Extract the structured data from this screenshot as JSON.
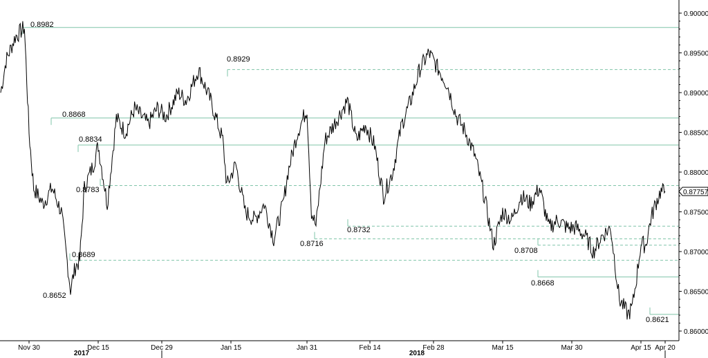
{
  "chart_data": {
    "type": "line",
    "title": "",
    "xlabel": "",
    "ylabel": "",
    "ylim": [
      0.8596,
      0.9018
    ],
    "x_ticks": [
      "Nov 30",
      "Dec 15",
      "Dec 29",
      "Jan 15",
      "Jan 31",
      "Feb 14",
      "Feb 28",
      "Mar 15",
      "Mar 30",
      "Apr 15",
      "Apr 20"
    ],
    "year_labels": [
      "2017",
      "2018"
    ],
    "y_ticks": [
      "0.86000",
      "0.86500",
      "0.87000",
      "0.87500",
      "0.88000",
      "0.88500",
      "0.89000",
      "0.89500",
      "0.90000"
    ],
    "last_value_label": "0.87757",
    "series": [
      {
        "x": [
          "Nov 23",
          "Nov 25",
          "Nov 27",
          "Nov 29",
          "Nov 30",
          "Dec 1",
          "Dec 3",
          "Dec 5",
          "Dec 7",
          "Dec 9",
          "Dec 10",
          "Dec 11",
          "Dec 12",
          "Dec 14",
          "Dec 15",
          "Dec 17",
          "Dec 19",
          "Dec 21",
          "Dec 23",
          "Dec 26",
          "Dec 28",
          "Dec 30",
          "Jan 2",
          "Jan 4",
          "Jan 7",
          "Jan 10",
          "Jan 13",
          "Jan 14",
          "Jan 16",
          "Jan 18",
          "Jan 20",
          "Jan 22",
          "Jan 24",
          "Jan 26",
          "Jan 27",
          "Jan 29",
          "Jan 31",
          "Feb 1",
          "Feb 2",
          "Feb 4",
          "Feb 6",
          "Feb 8",
          "Feb 9",
          "Feb 11",
          "Feb 13",
          "Feb 15",
          "Feb 17",
          "Feb 19",
          "Feb 21",
          "Feb 23",
          "Feb 25",
          "Feb 27",
          "Mar 1",
          "Mar 3",
          "Mar 5",
          "Mar 7",
          "Mar 9",
          "Mar 11",
          "Mar 13",
          "Mar 15",
          "Mar 17",
          "Mar 19",
          "Mar 21",
          "Mar 23",
          "Mar 25",
          "Mar 27",
          "Mar 29",
          "Mar 31",
          "Apr 2",
          "Apr 4",
          "Apr 6",
          "Apr 8",
          "Apr 10",
          "Apr 12",
          "Apr 13",
          "Apr 14",
          "Apr 15",
          "Apr 16",
          "Apr 17",
          "Apr 18",
          "Apr 19",
          "Apr 20"
        ],
        "y": [
          0.89,
          0.894,
          0.897,
          0.8982,
          0.885,
          0.878,
          0.876,
          0.878,
          0.875,
          0.8652,
          0.868,
          0.8689,
          0.878,
          0.881,
          0.8834,
          0.876,
          0.8868,
          0.885,
          0.888,
          0.886,
          0.888,
          0.887,
          0.89,
          0.889,
          0.8929,
          0.889,
          0.884,
          0.8783,
          0.881,
          0.875,
          0.874,
          0.876,
          0.8716,
          0.876,
          0.88,
          0.885,
          0.888,
          0.875,
          0.8732,
          0.884,
          0.886,
          0.888,
          0.889,
          0.884,
          0.886,
          0.8834,
          0.877,
          0.88,
          0.886,
          0.889,
          0.893,
          0.895,
          0.893,
          0.891,
          0.887,
          0.885,
          0.882,
          0.877,
          0.8708,
          0.875,
          0.874,
          0.877,
          0.876,
          0.878,
          0.873,
          0.874,
          0.873,
          0.873,
          0.872,
          0.87,
          0.872,
          0.873,
          0.864,
          0.8621,
          0.863,
          0.8668,
          0.871,
          0.8708,
          0.874,
          0.876,
          0.8775,
          0.87757
        ]
      }
    ],
    "levels": [
      {
        "label": "0.8982",
        "value": 0.8982,
        "style": "solid"
      },
      {
        "label": "0.8929",
        "value": 0.8929,
        "style": "dashed"
      },
      {
        "label": "0.8868",
        "value": 0.8868,
        "style": "solid"
      },
      {
        "label": "0.8834",
        "value": 0.8834,
        "style": "solid"
      },
      {
        "label": "0.8783",
        "value": 0.8783,
        "style": "dashed"
      },
      {
        "label": "0.8732",
        "value": 0.8732,
        "style": "dashed"
      },
      {
        "label": "0.8716",
        "value": 0.8716,
        "style": "dashed"
      },
      {
        "label": "0.8708",
        "value": 0.8708,
        "style": "dashed"
      },
      {
        "label": "0.8689",
        "value": 0.8689,
        "style": "dashed"
      },
      {
        "label": "0.8668",
        "value": 0.8668,
        "style": "solid"
      },
      {
        "label": "0.8652",
        "value": null,
        "style": "none"
      },
      {
        "label": "0.8621",
        "value": 0.8621,
        "style": "solid"
      }
    ],
    "grid": false,
    "colors": {
      "line": "#000000",
      "level": "#7fc4a8",
      "axis": "#000000"
    }
  }
}
